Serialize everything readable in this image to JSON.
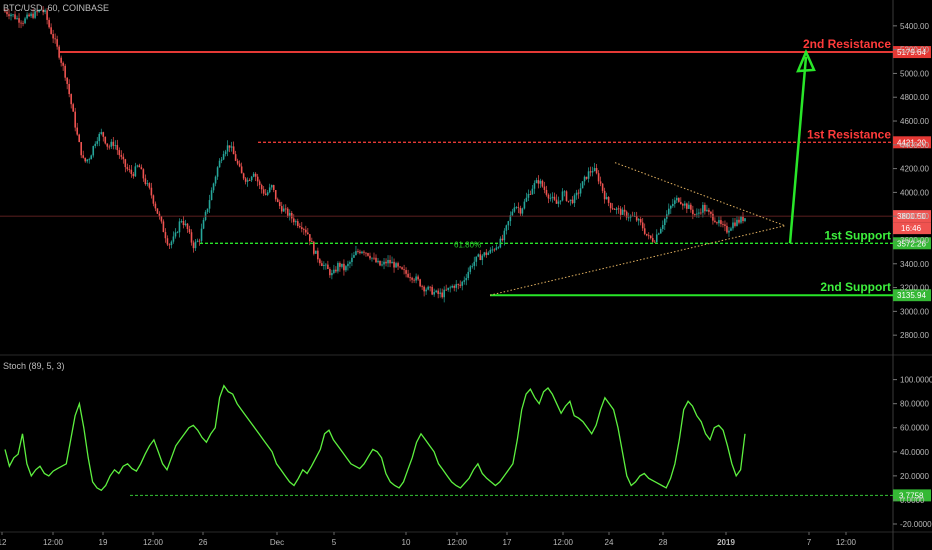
{
  "header": {
    "symbol": "BTC/USD, 60, COINBASE"
  },
  "indicator": {
    "title": "Stoch (89, 5, 3)"
  },
  "colors": {
    "up": "#26a69a",
    "down": "#ef5350",
    "resistance": "#e53935",
    "support": "#29e629",
    "stoch": "#5df03f",
    "text_red": "#ff3b3b",
    "text_green": "#3df03d"
  },
  "chart_data": [
    {
      "type": "candlestick",
      "title": "BTC/USD, 60, COINBASE",
      "ylim": [
        2650,
        5550
      ],
      "y_ticks": [
        2800,
        3000,
        3200,
        3400,
        3600,
        3800,
        4000,
        4200,
        4400,
        4600,
        4800,
        5000,
        5200,
        5400
      ],
      "y_tick_labels": [
        "2800.00",
        "3000.00",
        "3200.00",
        "3400.00",
        "3600.00",
        "3800.00",
        "4000.00",
        "4200.00",
        "4400.00",
        "4600.00",
        "4800.00",
        "5000.00",
        "5200.00",
        "5400.00"
      ],
      "x_ticks": [
        "12",
        "12:00",
        "19",
        "12:00",
        "26",
        "Dec",
        "5",
        "10",
        "12:00",
        "17",
        "12:00",
        "24",
        "28",
        "2019",
        "7",
        "12:00"
      ],
      "price_path": [
        [
          0,
          5520
        ],
        [
          0.03,
          5500
        ],
        [
          0.06,
          5460
        ],
        [
          0.09,
          5440
        ],
        [
          0.12,
          5480
        ],
        [
          0.15,
          5500
        ],
        [
          0.18,
          5540
        ],
        [
          0.2,
          5500
        ],
        [
          0.22,
          5380
        ],
        [
          0.24,
          5300
        ],
        [
          0.27,
          5150
        ],
        [
          0.3,
          4980
        ],
        [
          0.33,
          4720
        ],
        [
          0.36,
          4450
        ],
        [
          0.39,
          4250
        ],
        [
          0.42,
          4300
        ],
        [
          0.45,
          4450
        ],
        [
          0.48,
          4500
        ],
        [
          0.51,
          4380
        ],
        [
          0.54,
          4420
        ],
        [
          0.57,
          4300
        ],
        [
          0.6,
          4200
        ],
        [
          0.63,
          4150
        ],
        [
          0.66,
          4230
        ],
        [
          0.69,
          4100
        ],
        [
          0.72,
          4000
        ],
        [
          0.75,
          3850
        ],
        [
          0.78,
          3700
        ],
        [
          0.81,
          3560
        ],
        [
          0.84,
          3620
        ],
        [
          0.87,
          3780
        ],
        [
          0.9,
          3700
        ],
        [
          0.93,
          3550
        ],
        [
          0.96,
          3600
        ],
        [
          0.99,
          3800
        ],
        [
          1.02,
          4000
        ],
        [
          1.05,
          4200
        ],
        [
          1.08,
          4350
        ],
        [
          1.11,
          4400
        ],
        [
          1.14,
          4280
        ],
        [
          1.17,
          4150
        ],
        [
          1.2,
          4100
        ],
        [
          1.23,
          4180
        ],
        [
          1.26,
          4050
        ],
        [
          1.29,
          3980
        ],
        [
          1.32,
          4050
        ],
        [
          1.35,
          3900
        ],
        [
          1.38,
          3850
        ],
        [
          1.41,
          3800
        ],
        [
          1.44,
          3750
        ],
        [
          1.47,
          3720
        ],
        [
          1.5,
          3650
        ],
        [
          1.53,
          3500
        ],
        [
          1.56,
          3420
        ],
        [
          1.59,
          3360
        ],
        [
          1.62,
          3300
        ],
        [
          1.65,
          3400
        ],
        [
          1.68,
          3350
        ],
        [
          1.71,
          3420
        ],
        [
          1.74,
          3500
        ],
        [
          1.77,
          3520
        ],
        [
          1.8,
          3480
        ],
        [
          1.83,
          3420
        ],
        [
          1.86,
          3380
        ],
        [
          1.89,
          3420
        ],
        [
          1.92,
          3400
        ],
        [
          1.95,
          3350
        ],
        [
          1.98,
          3320
        ],
        [
          2.01,
          3300
        ],
        [
          2.04,
          3260
        ],
        [
          2.07,
          3200
        ],
        [
          2.1,
          3180
        ],
        [
          2.13,
          3150
        ],
        [
          2.16,
          3140
        ],
        [
          2.19,
          3180
        ],
        [
          2.22,
          3220
        ],
        [
          2.25,
          3210
        ],
        [
          2.28,
          3300
        ],
        [
          2.31,
          3400
        ],
        [
          2.34,
          3450
        ],
        [
          2.37,
          3480
        ],
        [
          2.4,
          3500
        ],
        [
          2.43,
          3550
        ],
        [
          2.46,
          3600
        ],
        [
          2.49,
          3750
        ],
        [
          2.52,
          3900
        ],
        [
          2.55,
          3850
        ],
        [
          2.58,
          3950
        ],
        [
          2.61,
          4050
        ],
        [
          2.64,
          4100
        ],
        [
          2.67,
          4020
        ],
        [
          2.7,
          3950
        ],
        [
          2.73,
          3900
        ],
        [
          2.76,
          4000
        ],
        [
          2.79,
          3920
        ],
        [
          2.82,
          3950
        ],
        [
          2.85,
          4050
        ],
        [
          2.88,
          4150
        ],
        [
          2.91,
          4200
        ],
        [
          2.94,
          4100
        ],
        [
          2.97,
          3950
        ],
        [
          3.0,
          3880
        ],
        [
          3.03,
          3850
        ],
        [
          3.06,
          3820
        ],
        [
          3.09,
          3800
        ],
        [
          3.12,
          3780
        ],
        [
          3.15,
          3720
        ],
        [
          3.18,
          3620
        ],
        [
          3.21,
          3600
        ],
        [
          3.24,
          3700
        ],
        [
          3.27,
          3800
        ],
        [
          3.3,
          3900
        ],
        [
          3.33,
          3950
        ],
        [
          3.36,
          3900
        ],
        [
          3.39,
          3860
        ],
        [
          3.42,
          3800
        ],
        [
          3.45,
          3880
        ],
        [
          3.48,
          3820
        ],
        [
          3.51,
          3780
        ],
        [
          3.54,
          3720
        ],
        [
          3.57,
          3680
        ],
        [
          3.6,
          3740
        ],
        [
          3.63,
          3760
        ],
        [
          3.66,
          3790
        ]
      ],
      "levels": [
        {
          "label": "2nd Resistance",
          "value": "5179.64",
          "price": 5179.64,
          "style": "solid",
          "color": "red"
        },
        {
          "label": "1st Resistance",
          "value": "4421.20",
          "price": 4421.2,
          "style": "dashed",
          "color": "red"
        },
        {
          "label": "1st Support",
          "value": "3572.26",
          "price": 3572.26,
          "style": "dashed",
          "color": "green"
        },
        {
          "label": "2nd Support",
          "value": "3135.94",
          "price": 3135.94,
          "style": "solid",
          "color": "green"
        }
      ],
      "last_price": {
        "value": "3800.50",
        "countdown": "16:46",
        "price": 3800.5
      },
      "annotations": {
        "fib": "61.80%"
      }
    },
    {
      "type": "line",
      "title": "Stoch (89, 5, 3)",
      "ylim": [
        -25,
        108
      ],
      "y_ticks": [
        -20,
        0,
        20,
        40,
        60,
        80,
        100
      ],
      "y_tick_labels": [
        "-20.0000",
        "0.0000",
        "20.0000",
        "40.0000",
        "60.0000",
        "80.0000",
        "100.0000"
      ],
      "level": {
        "value": "3.7758",
        "price": 3.7758
      },
      "series_values": [
        42,
        28,
        35,
        38,
        55,
        30,
        20,
        25,
        28,
        22,
        20,
        24,
        26,
        28,
        30,
        50,
        70,
        80,
        60,
        35,
        15,
        10,
        8,
        12,
        20,
        25,
        22,
        28,
        30,
        26,
        24,
        30,
        38,
        45,
        50,
        40,
        30,
        25,
        35,
        45,
        50,
        55,
        60,
        62,
        58,
        52,
        48,
        55,
        60,
        85,
        95,
        90,
        88,
        80,
        75,
        70,
        65,
        60,
        55,
        50,
        45,
        40,
        30,
        25,
        20,
        15,
        12,
        18,
        25,
        22,
        28,
        35,
        42,
        55,
        58,
        50,
        45,
        40,
        35,
        30,
        28,
        26,
        30,
        36,
        42,
        40,
        35,
        22,
        15,
        12,
        10,
        15,
        25,
        35,
        48,
        55,
        50,
        45,
        40,
        30,
        25,
        20,
        15,
        12,
        10,
        14,
        18,
        25,
        30,
        22,
        18,
        15,
        12,
        15,
        20,
        25,
        30,
        50,
        75,
        88,
        92,
        85,
        80,
        90,
        93,
        88,
        80,
        72,
        78,
        82,
        70,
        68,
        65,
        60,
        55,
        62,
        75,
        85,
        80,
        75,
        60,
        40,
        20,
        12,
        15,
        20,
        22,
        18,
        16,
        14,
        12,
        10,
        18,
        30,
        50,
        75,
        82,
        78,
        70,
        65,
        55,
        50,
        60,
        62,
        58,
        45,
        30,
        20,
        25,
        55
      ]
    }
  ]
}
